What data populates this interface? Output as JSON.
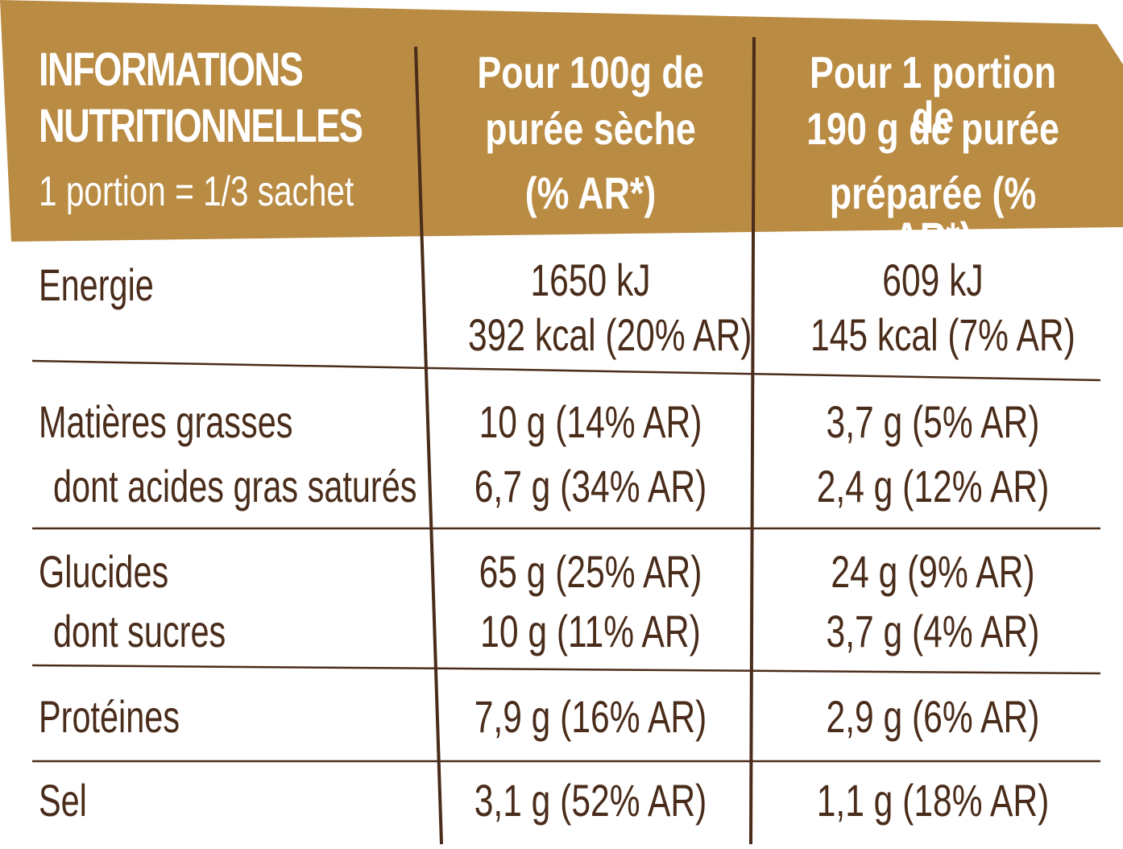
{
  "colors": {
    "header_bg": "#b98b43",
    "text": "#4a2c1a",
    "rule": "#4a2c1a"
  },
  "header": {
    "title_line1": "INFORMATIONS",
    "title_line2": "NUTRITIONNELLES",
    "subtitle": "1 portion = 1/3 sachet",
    "col1": [
      "Pour 100g de",
      "purée sèche",
      "(% AR*)"
    ],
    "col2": [
      "Pour 1 portion de",
      "190 g de purée",
      "préparée (% AR*)"
    ]
  },
  "rows": [
    {
      "label": "Energie",
      "v1": [
        "1650 kJ",
        "392 kcal (20% AR)"
      ],
      "v2": [
        "609 kJ",
        "145 kcal (7% AR)"
      ]
    },
    {
      "label": "Matières grasses",
      "v1": "10 g (14% AR)",
      "v2": "3,7 g (5% AR)"
    },
    {
      "label": "dont acides gras saturés",
      "v1": "6,7 g (34% AR)",
      "v2": "2,4 g (12% AR)"
    },
    {
      "label": "Glucides",
      "v1": "65 g (25% AR)",
      "v2": "24 g (9% AR)"
    },
    {
      "label": "dont sucres",
      "v1": "10 g (11% AR)",
      "v2": "3,7 g (4% AR)"
    },
    {
      "label": "Protéines",
      "v1": "7,9 g (16% AR)",
      "v2": "2,9 g (6% AR)"
    },
    {
      "label": "Sel",
      "v1": "3,1 g (52% AR)",
      "v2": "1,1 g (18% AR)"
    }
  ]
}
